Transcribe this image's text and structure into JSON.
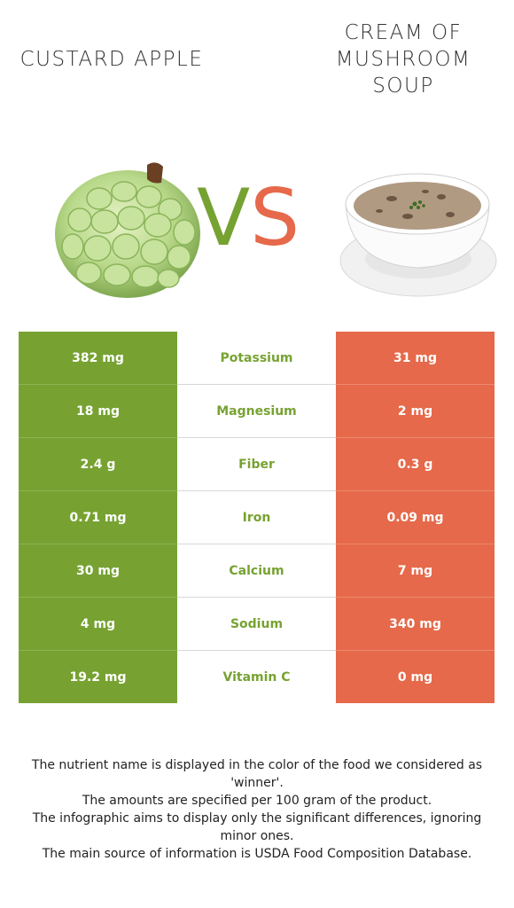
{
  "foods": {
    "left": {
      "name": "CUSTARD APPLE",
      "color": "#77a232"
    },
    "right": {
      "name": "CREAM OF MUSHROOM SOUP",
      "color": "#e5694a"
    }
  },
  "vs": {
    "v": "V",
    "s": "S"
  },
  "rows": [
    {
      "left": "382 mg",
      "nutrient": "Potassium",
      "right": "31 mg"
    },
    {
      "left": "18 mg",
      "nutrient": "Magnesium",
      "right": "2 mg"
    },
    {
      "left": "2.4 g",
      "nutrient": "Fiber",
      "right": "0.3 g"
    },
    {
      "left": "0.71 mg",
      "nutrient": "Iron",
      "right": "0.09 mg"
    },
    {
      "left": "30 mg",
      "nutrient": "Calcium",
      "right": "7 mg"
    },
    {
      "left": "4 mg",
      "nutrient": "Sodium",
      "right": "340 mg"
    },
    {
      "left": "19.2 mg",
      "nutrient": "Vitamin C",
      "right": "0 mg"
    }
  ],
  "notes": [
    "The nutrient name is displayed in the color of the food we considered as 'winner'.",
    "The amounts are specified per 100 gram of the product.",
    "The infographic aims to display only the significant differences, ignoring minor ones.",
    "The main source of information is USDA Food Composition Database."
  ]
}
